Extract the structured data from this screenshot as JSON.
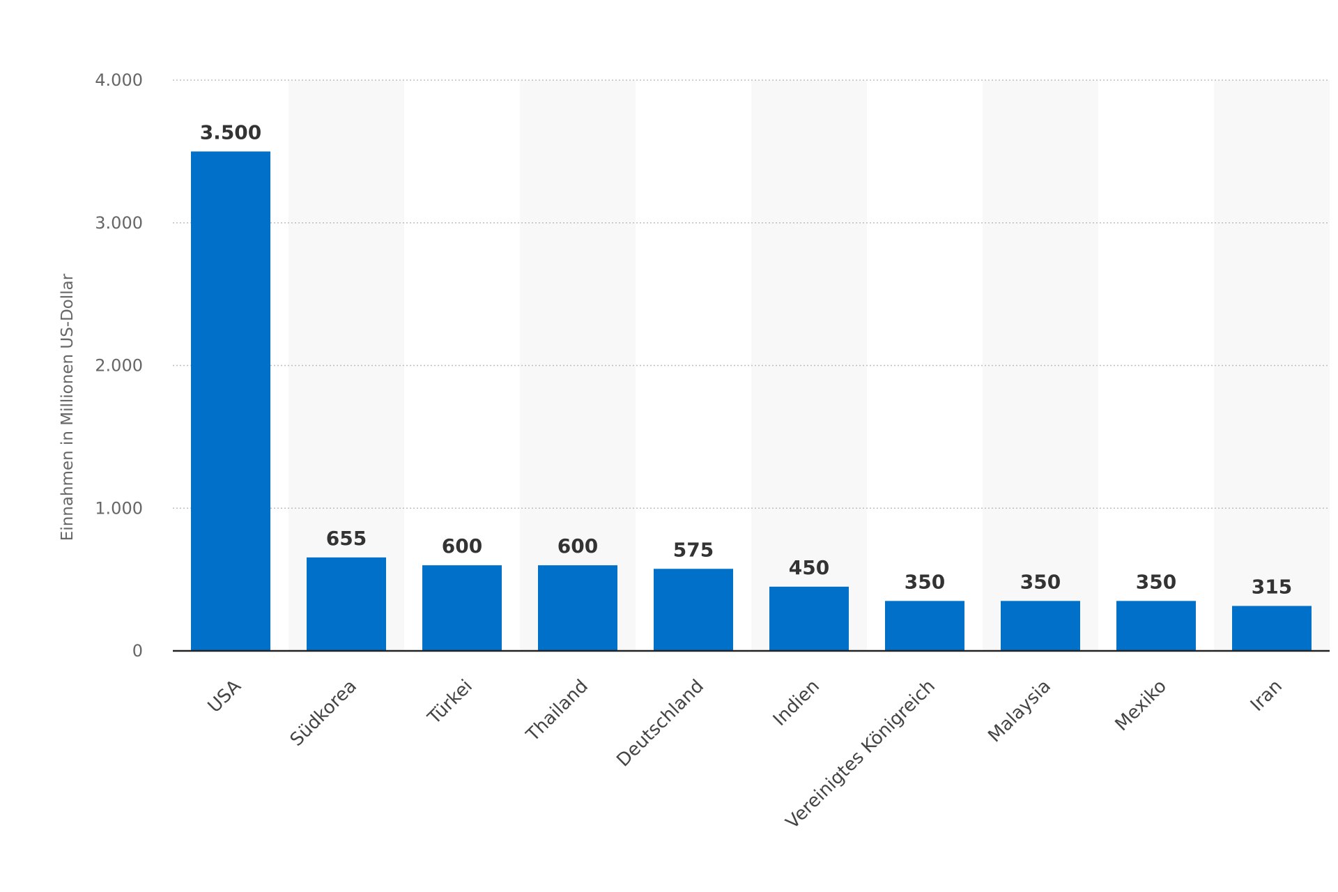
{
  "chart_data": {
    "type": "bar",
    "title": "",
    "xlabel": "",
    "ylabel": "Einnahmen in Millionen US-Dollar",
    "categories": [
      "USA",
      "Südkorea",
      "Türkei",
      "Thailand",
      "Deutschland",
      "Indien",
      "Vereinigtes Königreich",
      "Malaysia",
      "Mexiko",
      "Iran"
    ],
    "values": [
      3500,
      655,
      600,
      600,
      575,
      450,
      350,
      350,
      350,
      315
    ],
    "value_labels": [
      "3.500",
      "655",
      "600",
      "600",
      "575",
      "450",
      "350",
      "350",
      "350",
      "315"
    ],
    "ylim": [
      0,
      4000
    ],
    "yticks": [
      0,
      1000,
      2000,
      3000,
      4000
    ],
    "ytick_labels": [
      "0",
      "1.000",
      "2.000",
      "3.000",
      "4.000"
    ],
    "grid": true,
    "legend": "none",
    "bar_color": "#0070c9",
    "band_color": "#f8f8f8"
  }
}
